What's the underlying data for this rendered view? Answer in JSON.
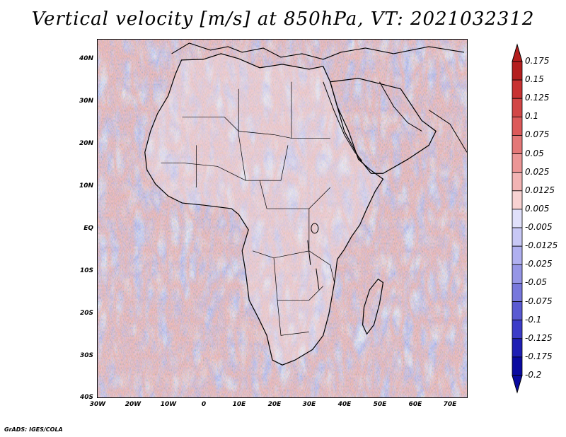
{
  "title": "Vertical velocity [m/s] at 850hPa, VT: 2021032312",
  "footer": "GrADS: IGES/COLA",
  "lat_labels": [
    "40N",
    "30N",
    "20N",
    "10N",
    "EQ",
    "10S",
    "20S",
    "30S",
    "40S"
  ],
  "lon_labels": [
    "30W",
    "20W",
    "10W",
    "0",
    "10E",
    "20E",
    "30E",
    "40E",
    "50E",
    "60E",
    "70E"
  ],
  "colorbar": {
    "labels": [
      "0.175",
      "0.15",
      "0.125",
      "0.1",
      "0.075",
      "0.05",
      "0.025",
      "0.0125",
      "0.005",
      "-0.005",
      "-0.0125",
      "-0.025",
      "-0.05",
      "-0.075",
      "-0.1",
      "-0.125",
      "-0.175",
      "-0.2"
    ],
    "colors": [
      "#b41e1e",
      "#c83232",
      "#d24646",
      "#dc5a5a",
      "#e47878",
      "#ec9696",
      "#f2b4b4",
      "#f8d2d2",
      "#ffffff",
      "#e0e0fa",
      "#c8c8f5",
      "#b0b0f0",
      "#9696e6",
      "#7878dc",
      "#5a5ad2",
      "#3c3cc8",
      "#1e1eb4",
      "#0a0aa0"
    ]
  },
  "colors": {
    "background_ocean": "#eeeefb",
    "coastline": "#000000"
  }
}
